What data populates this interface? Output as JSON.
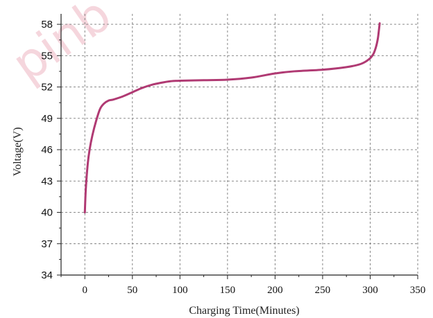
{
  "chart_data": {
    "type": "line",
    "xlabel": "Charging Time(Minutes)",
    "ylabel": "Voltage(V)",
    "xlim": [
      -25,
      350
    ],
    "ylim": [
      34,
      59
    ],
    "xticks": [
      0,
      50,
      100,
      150,
      200,
      250,
      300,
      350
    ],
    "yticks": [
      34,
      37,
      40,
      43,
      46,
      49,
      52,
      55,
      58
    ],
    "grid": true,
    "grid_style": "dashed",
    "series": [
      {
        "color": "#b03a73",
        "x": [
          0,
          1,
          3,
          5,
          8,
          12,
          16,
          20,
          25,
          30,
          40,
          50,
          60,
          70,
          80,
          90,
          100,
          125,
          150,
          175,
          200,
          220,
          250,
          275,
          290,
          298,
          303,
          306,
          308,
          309,
          310
        ],
        "y": [
          40.0,
          42.2,
          44.6,
          46.0,
          47.4,
          48.8,
          49.9,
          50.4,
          50.7,
          50.8,
          51.1,
          51.5,
          51.9,
          52.2,
          52.4,
          52.55,
          52.6,
          52.65,
          52.7,
          52.9,
          53.3,
          53.5,
          53.65,
          53.9,
          54.2,
          54.6,
          55.1,
          55.8,
          56.6,
          57.3,
          58.1
        ]
      }
    ]
  },
  "watermark": {
    "text": "pinb",
    "color": "#f2c6cf"
  }
}
